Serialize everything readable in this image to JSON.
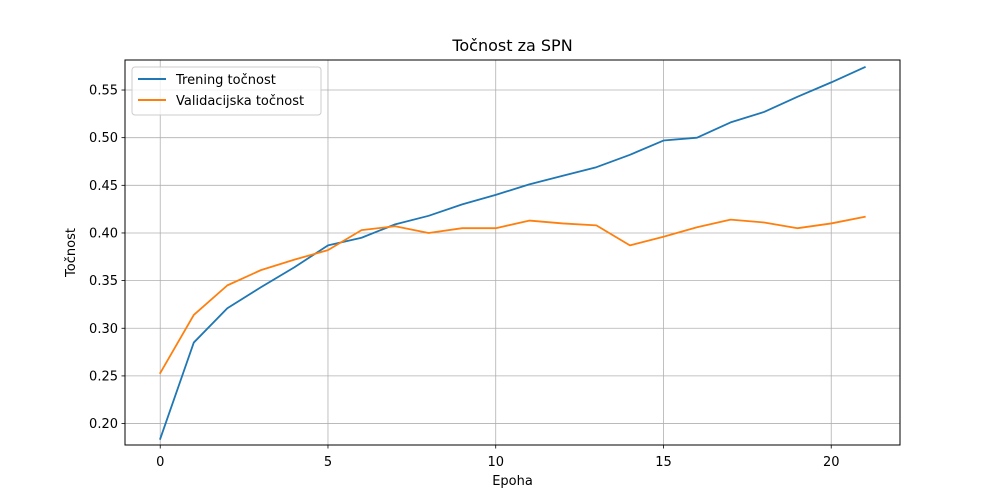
{
  "chart_data": {
    "type": "line",
    "title": "Točnost za SPN",
    "xlabel": "Epoha",
    "ylabel": "Točnost",
    "xlim": [
      -1.05,
      22.05
    ],
    "ylim": [
      0.1775,
      0.5815
    ],
    "xticks": [
      0,
      5,
      10,
      15,
      20
    ],
    "yticks": [
      0.2,
      0.25,
      0.3,
      0.35,
      0.4,
      0.45,
      0.5,
      0.55
    ],
    "grid": true,
    "legend_position": "top-left",
    "x": [
      0,
      1,
      2,
      3,
      4,
      5,
      6,
      7,
      8,
      9,
      10,
      11,
      12,
      13,
      14,
      15,
      16,
      17,
      18,
      19,
      20,
      21
    ],
    "series": [
      {
        "name": "Trening točnost",
        "color": "#1f77b4",
        "values": [
          0.184,
          0.285,
          0.321,
          0.343,
          0.364,
          0.387,
          0.395,
          0.409,
          0.418,
          0.43,
          0.44,
          0.451,
          0.46,
          0.469,
          0.482,
          0.497,
          0.5,
          0.516,
          0.527,
          0.543,
          0.558,
          0.574
        ]
      },
      {
        "name": "Validacijska točnost",
        "color": "#ff7f0e",
        "values": [
          0.253,
          0.314,
          0.345,
          0.361,
          0.372,
          0.382,
          0.403,
          0.407,
          0.4,
          0.405,
          0.405,
          0.413,
          0.41,
          0.408,
          0.387,
          0.396,
          0.406,
          0.414,
          0.411,
          0.405,
          0.41,
          0.417
        ]
      }
    ]
  }
}
